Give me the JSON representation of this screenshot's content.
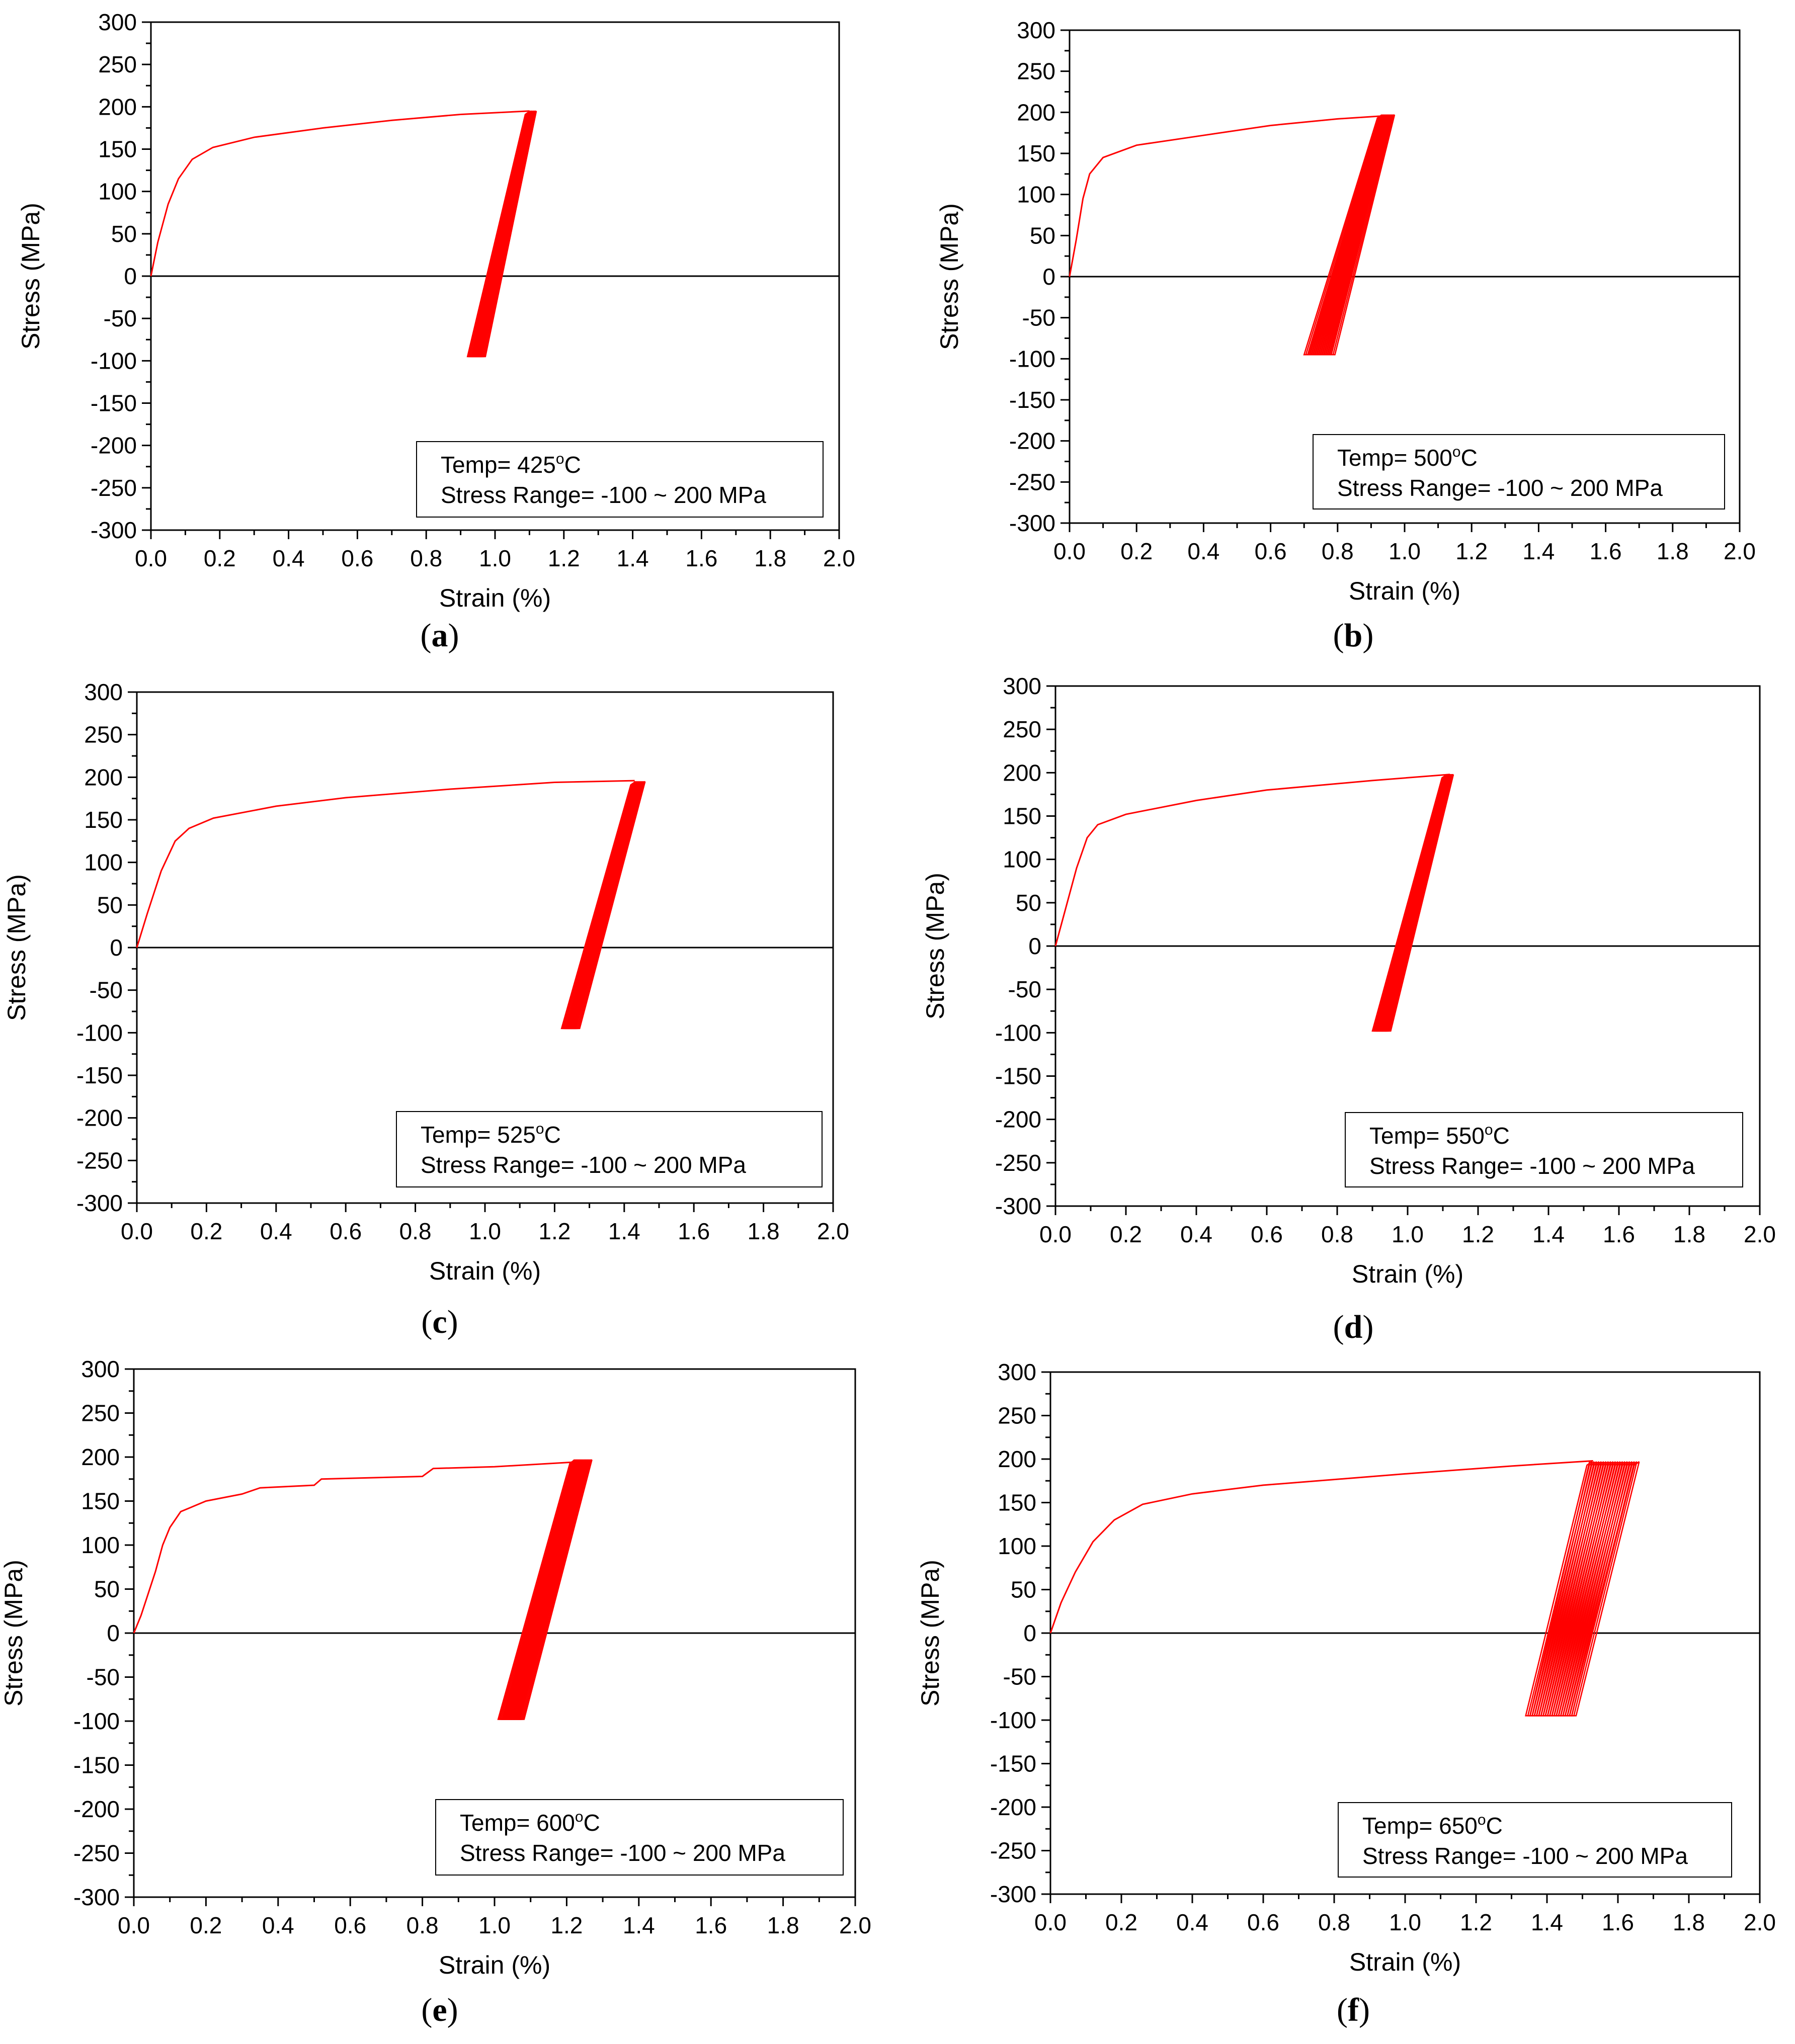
{
  "figure": {
    "curve_color": "#ff0000",
    "axis_color": "#000000"
  },
  "chart_data": [
    {
      "id": "a",
      "type": "line",
      "panel_label": "a",
      "xlabel": "Strain (%)",
      "ylabel": "Stress (MPa)",
      "xlim": [
        0.0,
        2.0
      ],
      "ylim": [
        -300,
        300
      ],
      "xticks": [
        "0.0",
        "0.2",
        "0.4",
        "0.6",
        "0.8",
        "1.0",
        "1.2",
        "1.4",
        "1.6",
        "1.8",
        "2.0"
      ],
      "yticks": [
        "300",
        "250",
        "200",
        "150",
        "100",
        "50",
        "0",
        "-50",
        "-100",
        "-150",
        "-200",
        "-250",
        "-300"
      ],
      "legend": {
        "line1_prefix": "Temp= ",
        "temp": "425",
        "deg": "o",
        "line1_suffix": "C",
        "line2": "Stress Range= -100 ~ 200 MPa"
      },
      "monotonic": [
        [
          0,
          0
        ],
        [
          0.02,
          40
        ],
        [
          0.05,
          85
        ],
        [
          0.08,
          115
        ],
        [
          0.12,
          138
        ],
        [
          0.18,
          152
        ],
        [
          0.3,
          164
        ],
        [
          0.5,
          175
        ],
        [
          0.7,
          184
        ],
        [
          0.9,
          191
        ],
        [
          1.1,
          195
        ]
      ],
      "cycles": {
        "count": 12,
        "max_strain_start": 1.1,
        "max_strain_end": 1.12,
        "min_strain_start": 0.92,
        "min_strain_end": 0.96,
        "stress_max": 195,
        "stress_min": -95
      }
    },
    {
      "id": "b",
      "type": "line",
      "panel_label": "b",
      "xlabel": "Strain (%)",
      "ylabel": "Stress (MPa)",
      "xlim": [
        0.0,
        2.0
      ],
      "ylim": [
        -300,
        300
      ],
      "xticks": [
        "0.0",
        "0.2",
        "0.4",
        "0.6",
        "0.8",
        "1.0",
        "1.2",
        "1.4",
        "1.6",
        "1.8",
        "2.0"
      ],
      "yticks": [
        "300",
        "250",
        "200",
        "150",
        "100",
        "50",
        "0",
        "-50",
        "-100",
        "-150",
        "-200",
        "-250",
        "-300"
      ],
      "legend": {
        "line1_prefix": "Temp= ",
        "temp": "500",
        "deg": "o",
        "line1_suffix": "C",
        "line2": "Stress Range= -100 ~ 200 MPa"
      },
      "monotonic": [
        [
          0,
          0
        ],
        [
          0.02,
          45
        ],
        [
          0.04,
          95
        ],
        [
          0.06,
          125
        ],
        [
          0.1,
          145
        ],
        [
          0.2,
          160
        ],
        [
          0.4,
          172
        ],
        [
          0.6,
          184
        ],
        [
          0.8,
          192
        ],
        [
          0.95,
          196
        ]
      ],
      "cycles": {
        "count": 16,
        "max_strain_start": 0.93,
        "max_strain_end": 0.97,
        "min_strain_start": 0.7,
        "min_strain_end": 0.78,
        "stress_max": 197,
        "stress_min": -95
      }
    },
    {
      "id": "c",
      "type": "line",
      "panel_label": "c",
      "xlabel": "Strain (%)",
      "ylabel": "Stress (MPa)",
      "xlim": [
        0.0,
        2.0
      ],
      "ylim": [
        -300,
        300
      ],
      "xticks": [
        "0.0",
        "0.2",
        "0.4",
        "0.6",
        "0.8",
        "1.0",
        "1.2",
        "1.4",
        "1.6",
        "1.8",
        "2.0"
      ],
      "yticks": [
        "300",
        "250",
        "200",
        "150",
        "100",
        "50",
        "0",
        "-50",
        "-100",
        "-150",
        "-200",
        "-250",
        "-300"
      ],
      "legend": {
        "line1_prefix": "Temp= ",
        "temp": "525",
        "deg": "o",
        "line1_suffix": "C",
        "line2": "Stress Range= -100 ~ 200 MPa"
      },
      "monotonic": [
        [
          0,
          0
        ],
        [
          0.03,
          40
        ],
        [
          0.07,
          90
        ],
        [
          0.11,
          125
        ],
        [
          0.15,
          140
        ],
        [
          0.22,
          152
        ],
        [
          0.4,
          166
        ],
        [
          0.6,
          176
        ],
        [
          0.9,
          186
        ],
        [
          1.2,
          194
        ],
        [
          1.43,
          196
        ]
      ],
      "cycles": {
        "count": 12,
        "max_strain_start": 1.43,
        "max_strain_end": 1.46,
        "min_strain_start": 1.22,
        "min_strain_end": 1.26,
        "stress_max": 195,
        "stress_min": -95
      }
    },
    {
      "id": "d",
      "type": "line",
      "panel_label": "d",
      "xlabel": "Strain (%)",
      "ylabel": "Stress (MPa)",
      "xlim": [
        0.0,
        2.0
      ],
      "ylim": [
        -300,
        300
      ],
      "xticks": [
        "0.0",
        "0.2",
        "0.4",
        "0.6",
        "0.8",
        "1.0",
        "1.2",
        "1.4",
        "1.6",
        "1.8",
        "2.0"
      ],
      "yticks": [
        "300",
        "250",
        "200",
        "150",
        "100",
        "50",
        "0",
        "-50",
        "-100",
        "-150",
        "-200",
        "-250",
        "-300"
      ],
      "legend": {
        "line1_prefix": "Temp= ",
        "temp": "550",
        "deg": "o",
        "line1_suffix": "C",
        "line2": "Stress Range= -100 ~ 200 MPa"
      },
      "monotonic": [
        [
          0,
          0
        ],
        [
          0.03,
          45
        ],
        [
          0.06,
          90
        ],
        [
          0.09,
          125
        ],
        [
          0.12,
          140
        ],
        [
          0.2,
          152
        ],
        [
          0.4,
          168
        ],
        [
          0.6,
          180
        ],
        [
          0.9,
          191
        ],
        [
          1.12,
          198
        ]
      ],
      "cycles": {
        "count": 14,
        "max_strain_start": 1.11,
        "max_strain_end": 1.13,
        "min_strain_start": 0.9,
        "min_strain_end": 0.94,
        "stress_max": 198,
        "stress_min": -98
      }
    },
    {
      "id": "e",
      "type": "line",
      "panel_label": "e",
      "xlabel": "Strain (%)",
      "ylabel": "Stress (MPa)",
      "xlim": [
        0.0,
        2.0
      ],
      "ylim": [
        -300,
        300
      ],
      "xticks": [
        "0.0",
        "0.2",
        "0.4",
        "0.6",
        "0.8",
        "1.0",
        "1.2",
        "1.4",
        "1.6",
        "1.8",
        "2.0"
      ],
      "yticks": [
        "300",
        "250",
        "200",
        "150",
        "100",
        "50",
        "0",
        "-50",
        "-100",
        "-150",
        "-200",
        "-250",
        "-300"
      ],
      "legend": {
        "line1_prefix": "Temp= ",
        "temp": "600",
        "deg": "o",
        "line1_suffix": "C",
        "line2": "Stress Range= -100 ~ 200 MPa"
      },
      "monotonic": [
        [
          0,
          0
        ],
        [
          0.02,
          20
        ],
        [
          0.04,
          45
        ],
        [
          0.06,
          70
        ],
        [
          0.08,
          100
        ],
        [
          0.1,
          120
        ],
        [
          0.13,
          138
        ],
        [
          0.2,
          150
        ],
        [
          0.3,
          158
        ],
        [
          0.35,
          165
        ],
        [
          0.5,
          168
        ],
        [
          0.52,
          175
        ],
        [
          0.8,
          178
        ],
        [
          0.83,
          187
        ],
        [
          1.0,
          189
        ],
        [
          1.25,
          195
        ]
      ],
      "cycles": {
        "count": 18,
        "max_strain_start": 1.22,
        "max_strain_end": 1.27,
        "min_strain_start": 1.01,
        "min_strain_end": 1.07,
        "stress_max": 197,
        "stress_min": -98
      }
    },
    {
      "id": "f",
      "type": "line",
      "panel_label": "f",
      "xlabel": "Strain (%)",
      "ylabel": "Stress (MPa)",
      "xlim": [
        0.0,
        2.0
      ],
      "ylim": [
        -300,
        300
      ],
      "xticks": [
        "0.0",
        "0.2",
        "0.4",
        "0.6",
        "0.8",
        "1.0",
        "1.2",
        "1.4",
        "1.6",
        "1.8",
        "2.0"
      ],
      "yticks": [
        "300",
        "250",
        "200",
        "150",
        "100",
        "50",
        "0",
        "-50",
        "-100",
        "-150",
        "-200",
        "-250",
        "-300"
      ],
      "legend": {
        "line1_prefix": "Temp= ",
        "temp": "650",
        "deg": "o",
        "line1_suffix": "C",
        "line2": "Stress Range= -100 ~ 200 MPa"
      },
      "monotonic": [
        [
          0,
          0
        ],
        [
          0.03,
          35
        ],
        [
          0.07,
          70
        ],
        [
          0.12,
          105
        ],
        [
          0.18,
          130
        ],
        [
          0.26,
          148
        ],
        [
          0.4,
          160
        ],
        [
          0.6,
          170
        ],
        [
          1.0,
          183
        ],
        [
          1.3,
          192
        ],
        [
          1.53,
          198
        ]
      ],
      "cycles": {
        "count": 22,
        "max_strain_start": 1.52,
        "max_strain_end": 1.66,
        "min_strain_start": 1.34,
        "min_strain_end": 1.47,
        "stress_max": 197,
        "stress_min": -95
      }
    }
  ]
}
